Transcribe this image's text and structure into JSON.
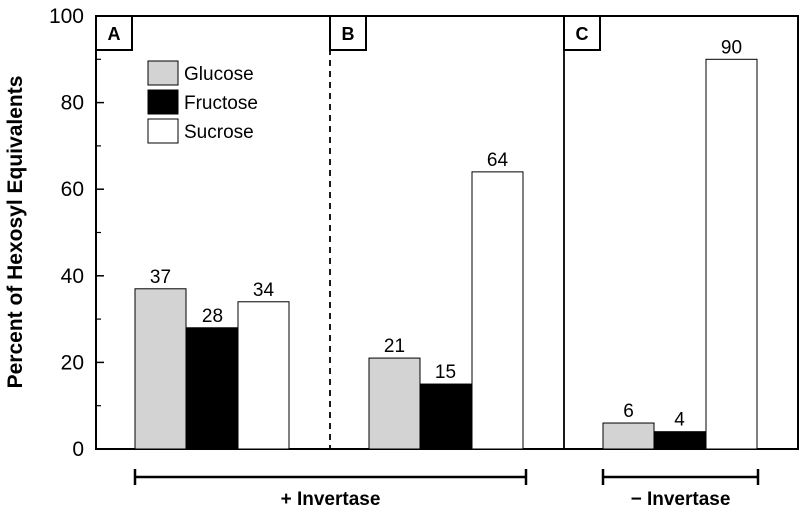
{
  "chart_data": {
    "type": "bar",
    "ylabel": "Percent of Hexosyl Equivalents",
    "ylim": [
      0,
      100
    ],
    "yticks": [
      0,
      20,
      40,
      60,
      80,
      100
    ],
    "legend": {
      "placement": "top-left",
      "entries": [
        {
          "name": "Glucose",
          "color": "#d3d3d3"
        },
        {
          "name": "Fructose",
          "color": "#000000"
        },
        {
          "name": "Sucrose",
          "color": "#ffffff"
        }
      ]
    },
    "panels": [
      {
        "label": "A",
        "values": [
          37,
          28,
          34
        ],
        "value_labels": [
          "37",
          "28",
          "34"
        ]
      },
      {
        "label": "B",
        "values": [
          21,
          15,
          64
        ],
        "value_labels": [
          "21",
          "15",
          "64"
        ]
      },
      {
        "label": "C",
        "values": [
          6,
          4,
          90
        ],
        "value_labels": [
          "6",
          "4",
          "90"
        ]
      }
    ],
    "groups": [
      {
        "label": "+ Invertase",
        "panels": [
          "A",
          "B"
        ]
      },
      {
        "label": "− Invertase",
        "panels": [
          "C"
        ]
      }
    ],
    "divider_styles": [
      "dashed",
      "solid"
    ]
  }
}
